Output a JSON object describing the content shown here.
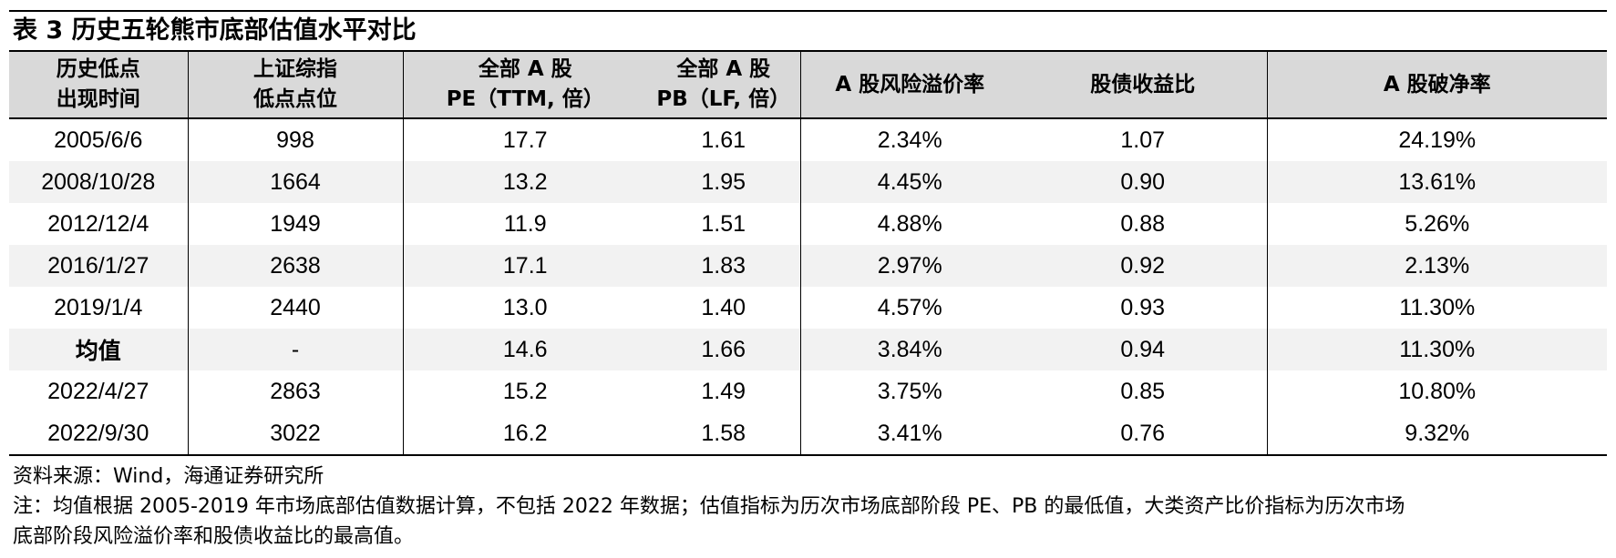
{
  "title": "表 3 历史五轮熊市底部估值水平对比",
  "headers": [
    {
      "line1": "历史低点",
      "line2": "出现时间"
    },
    {
      "line1": "上证综指",
      "line2": "低点点位"
    },
    {
      "line1": "全部 A 股",
      "line2": "PE（TTM, 倍）"
    },
    {
      "line1": "全部  A 股",
      "line2": "PB（LF, 倍）"
    },
    {
      "line1": "A 股风险溢价率",
      "line2": ""
    },
    {
      "line1": "股债收益比",
      "line2": ""
    },
    {
      "line1": "A 股破净率",
      "line2": ""
    }
  ],
  "rows": [
    [
      "2005/6/6",
      "998",
      "17.7",
      "1.61",
      "2.34%",
      "1.07",
      "24.19%"
    ],
    [
      "2008/10/28",
      "1664",
      "13.2",
      "1.95",
      "4.45%",
      "0.90",
      "13.61%"
    ],
    [
      "2012/12/4",
      "1949",
      "11.9",
      "1.51",
      "4.88%",
      "0.88",
      "5.26%"
    ],
    [
      "2016/1/27",
      "2638",
      "17.1",
      "1.83",
      "2.97%",
      "0.92",
      "2.13%"
    ],
    [
      "2019/1/4",
      "2440",
      "13.0",
      "1.40",
      "4.57%",
      "0.93",
      "11.30%"
    ],
    [
      "均值",
      "-",
      "14.6",
      "1.66",
      "3.84%",
      "0.94",
      "11.30%"
    ],
    [
      "2022/4/27",
      "2863",
      "15.2",
      "1.49",
      "3.75%",
      "0.85",
      "10.80%"
    ],
    [
      "2022/9/30",
      "3022",
      "16.2",
      "1.58",
      "3.41%",
      "0.76",
      "9.32%"
    ]
  ],
  "notes": {
    "source": "资料来源：Wind，海通证券研究所",
    "note_line1": "注：均值根据 2005-2019 年市场底部估值数据计算，不包括 2022 年数据；估值指标为历次市场底部阶段 PE、PB 的最低值，大类资产比价指标为历次市场",
    "note_line2": "底部阶段风险溢价率和股债收益比的最高值。"
  }
}
